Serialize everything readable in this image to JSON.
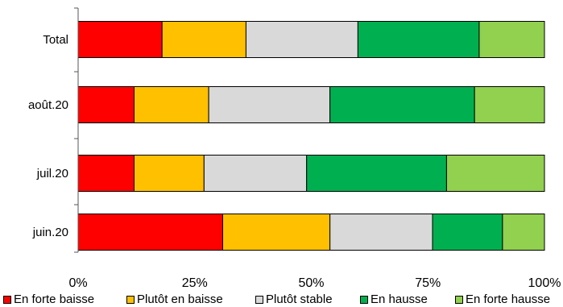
{
  "chart_data": {
    "type": "bar",
    "orientation": "horizontal",
    "stacked": true,
    "categories": [
      "Total",
      "août.20",
      "juil.20",
      "juin.20"
    ],
    "series": [
      {
        "name": "En forte baisse",
        "color": "#ff0000",
        "values": [
          18,
          12,
          12,
          31
        ]
      },
      {
        "name": "Plutôt en baisse",
        "color": "#ffc000",
        "values": [
          18,
          16,
          15,
          23
        ]
      },
      {
        "name": "Plutôt stable",
        "color": "#d9d9d9",
        "values": [
          24,
          26,
          22,
          22
        ]
      },
      {
        "name": "En hausse",
        "color": "#00b050",
        "values": [
          26,
          31,
          30,
          15
        ]
      },
      {
        "name": "En forte hausse",
        "color": "#92d050",
        "values": [
          14,
          15,
          21,
          9
        ]
      }
    ],
    "x_ticks": [
      "0%",
      "25%",
      "50%",
      "75%",
      "100%"
    ],
    "xlim": [
      0,
      100
    ],
    "grid": false,
    "legend_position": "bottom"
  }
}
